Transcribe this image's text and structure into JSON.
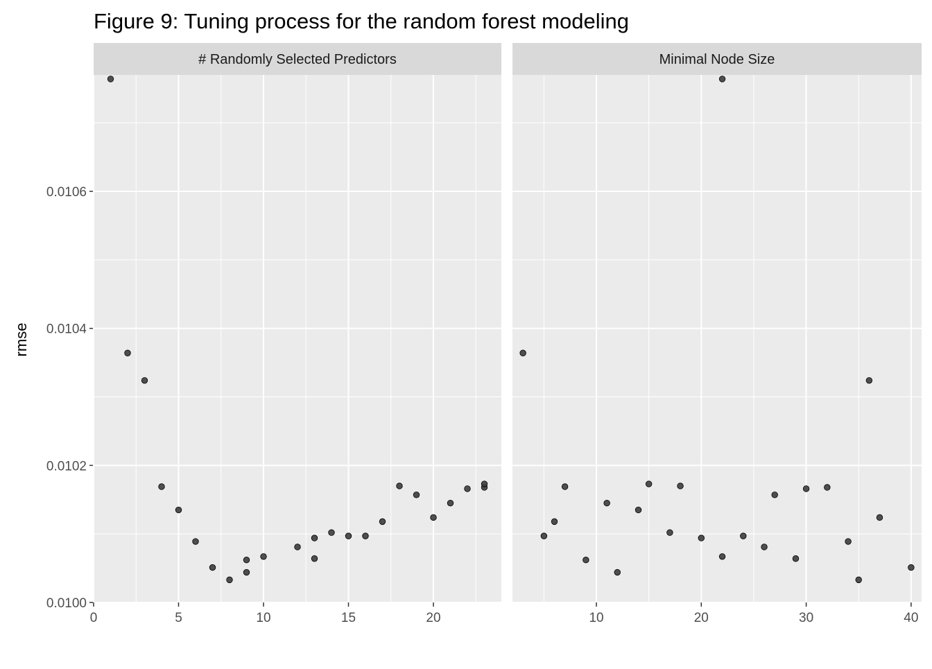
{
  "title": "Figure 9: Tuning process for the random forest modeling",
  "chart_data": {
    "type": "scatter",
    "ylabel": "rmse",
    "ylim": [
      0.01,
      0.01077
    ],
    "y_ticks": [
      0.01,
      0.0102,
      0.0104,
      0.0106
    ],
    "y_tick_labels": [
      "0.0100",
      "0.0102",
      "0.0104",
      "0.0106"
    ],
    "grid": true,
    "point_color": "#3d3d3d",
    "panel_bg": "#ebebeb",
    "strip_bg": "#d9d9d9",
    "panels": [
      {
        "strip": "# Randomly Selected Predictors",
        "xlim": [
          0,
          24
        ],
        "x_ticks": [
          0,
          5,
          10,
          15,
          20
        ],
        "x_tick_labels": [
          "0",
          "5",
          "10",
          "15",
          "20"
        ],
        "points": [
          {
            "x": 1,
            "y": 0.010764
          },
          {
            "x": 2,
            "y": 0.010364
          },
          {
            "x": 3,
            "y": 0.010324
          },
          {
            "x": 4,
            "y": 0.010169
          },
          {
            "x": 5,
            "y": 0.010135
          },
          {
            "x": 6,
            "y": 0.010089
          },
          {
            "x": 7,
            "y": 0.010051
          },
          {
            "x": 8,
            "y": 0.010033
          },
          {
            "x": 9,
            "y": 0.010044
          },
          {
            "x": 9,
            "y": 0.010062
          },
          {
            "x": 10,
            "y": 0.010067
          },
          {
            "x": 12,
            "y": 0.010081
          },
          {
            "x": 13,
            "y": 0.010064
          },
          {
            "x": 13,
            "y": 0.010094
          },
          {
            "x": 14,
            "y": 0.010102
          },
          {
            "x": 15,
            "y": 0.010097
          },
          {
            "x": 16,
            "y": 0.010097
          },
          {
            "x": 17,
            "y": 0.010118
          },
          {
            "x": 18,
            "y": 0.01017
          },
          {
            "x": 19,
            "y": 0.010157
          },
          {
            "x": 20,
            "y": 0.010124
          },
          {
            "x": 21,
            "y": 0.010145
          },
          {
            "x": 22,
            "y": 0.010166
          },
          {
            "x": 23,
            "y": 0.010168
          },
          {
            "x": 23,
            "y": 0.010173
          }
        ]
      },
      {
        "strip": "Minimal Node Size",
        "xlim": [
          2,
          41
        ],
        "x_ticks": [
          10,
          20,
          30,
          40
        ],
        "x_tick_labels": [
          "10",
          "20",
          "30",
          "40"
        ],
        "points": [
          {
            "x": 3,
            "y": 0.010364
          },
          {
            "x": 5,
            "y": 0.010097
          },
          {
            "x": 6,
            "y": 0.010118
          },
          {
            "x": 7,
            "y": 0.010169
          },
          {
            "x": 9,
            "y": 0.010062
          },
          {
            "x": 11,
            "y": 0.010145
          },
          {
            "x": 12,
            "y": 0.010044
          },
          {
            "x": 14,
            "y": 0.010135
          },
          {
            "x": 15,
            "y": 0.010173
          },
          {
            "x": 17,
            "y": 0.010102
          },
          {
            "x": 18,
            "y": 0.01017
          },
          {
            "x": 20,
            "y": 0.010094
          },
          {
            "x": 22,
            "y": 0.010764
          },
          {
            "x": 22,
            "y": 0.010067
          },
          {
            "x": 24,
            "y": 0.010097
          },
          {
            "x": 26,
            "y": 0.010081
          },
          {
            "x": 27,
            "y": 0.010157
          },
          {
            "x": 29,
            "y": 0.010064
          },
          {
            "x": 30,
            "y": 0.010166
          },
          {
            "x": 32,
            "y": 0.010168
          },
          {
            "x": 34,
            "y": 0.010089
          },
          {
            "x": 35,
            "y": 0.010033
          },
          {
            "x": 36,
            "y": 0.010324
          },
          {
            "x": 37,
            "y": 0.010124
          },
          {
            "x": 40,
            "y": 0.010051
          }
        ]
      }
    ]
  }
}
